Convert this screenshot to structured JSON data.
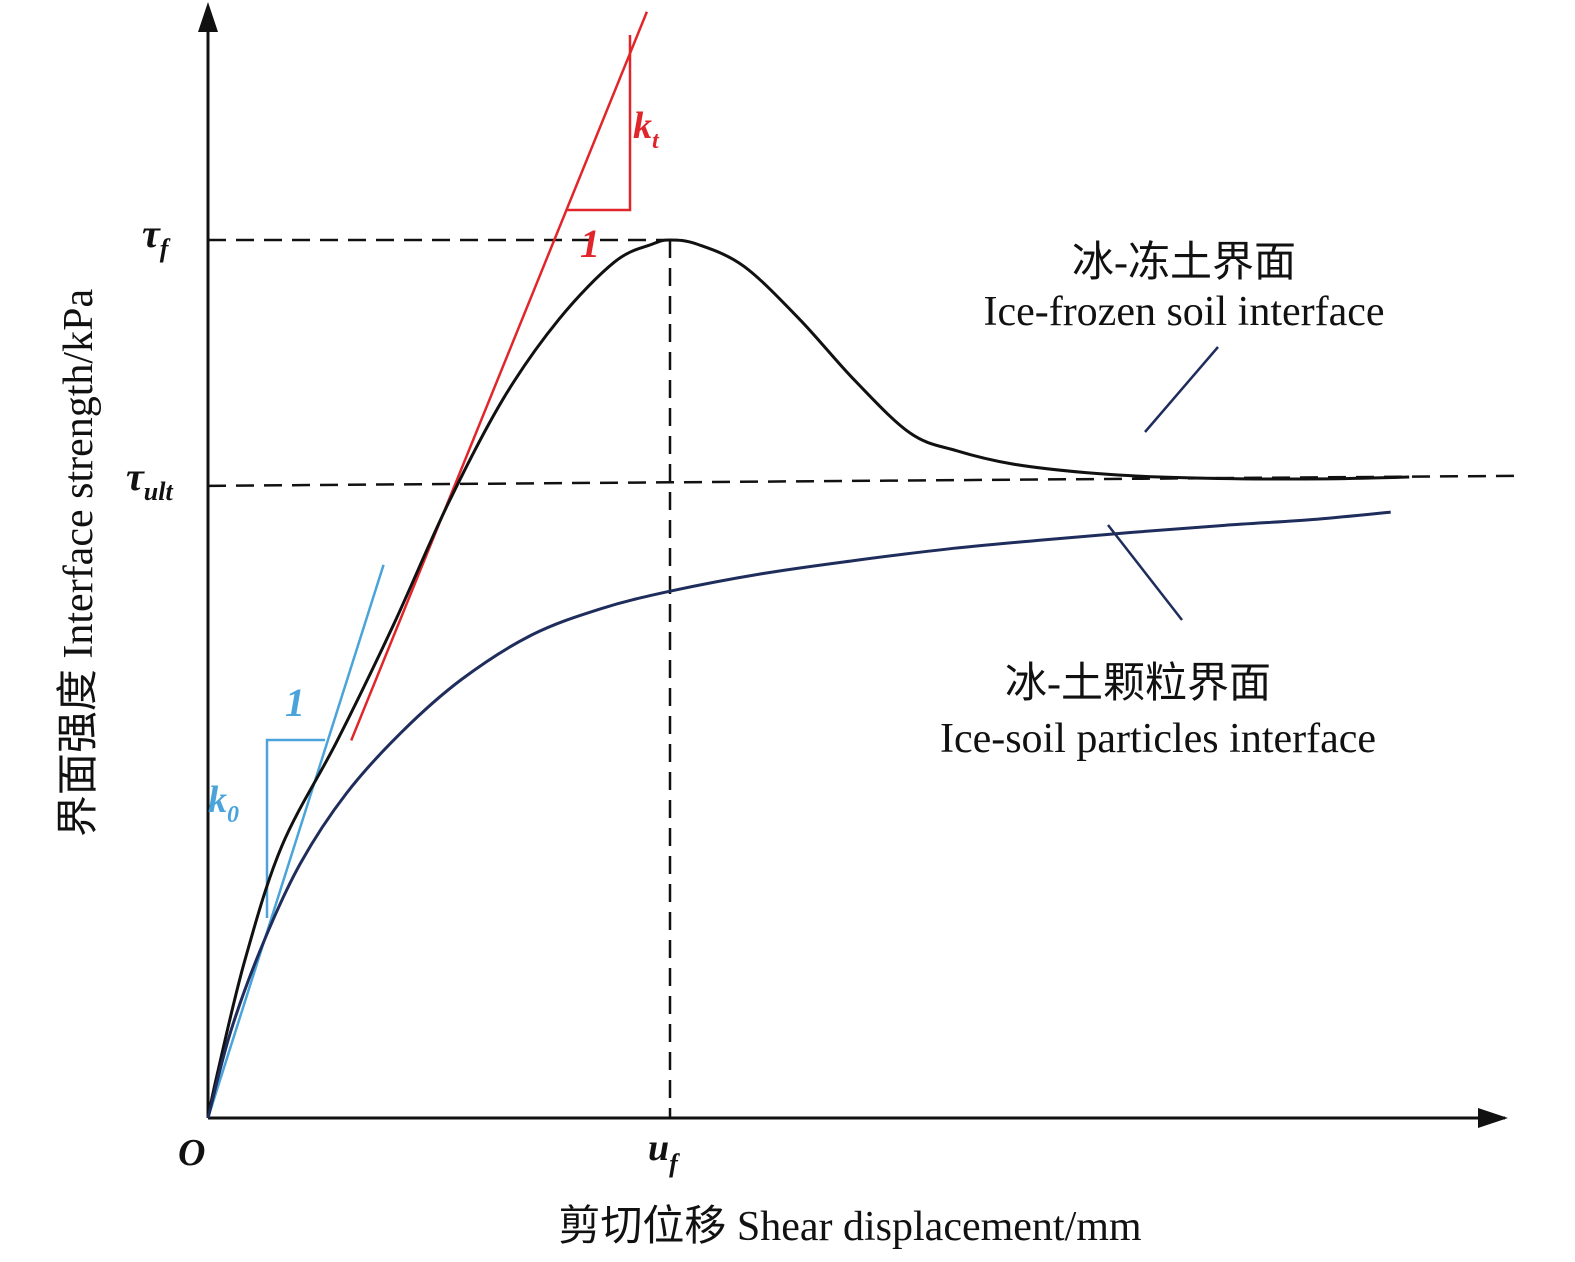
{
  "chart_data": {
    "type": "line",
    "title": "",
    "xlabel": "剪切位移 Shear displacement/mm",
    "ylabel": "界面强度 Interface strength/kPa",
    "origin_label": "O",
    "x_ticks": [
      {
        "main": "u",
        "sub": "f",
        "x": 1.0
      }
    ],
    "y_ticks": [
      {
        "main": "τ",
        "sub": "f",
        "y": 1.0
      },
      {
        "main": "τ",
        "sub": "ult",
        "y": 0.72
      }
    ],
    "xlim": [
      0,
      2.7
    ],
    "ylim": [
      0,
      1.26
    ],
    "series": [
      {
        "name": "冰-冻土界面 Ice-frozen soil interface",
        "color": "#111111",
        "x": [
          0,
          0.02,
          0.08,
          0.16,
          0.28,
          0.4,
          0.52,
          0.64,
          0.76,
          0.88,
          0.96,
          1.0,
          1.06,
          1.16,
          1.28,
          1.4,
          1.52,
          1.62,
          1.74,
          1.9,
          2.06,
          2.24,
          2.42,
          2.6
        ],
        "y": [
          0,
          0.05,
          0.18,
          0.31,
          0.43,
          0.56,
          0.7,
          0.82,
          0.91,
          0.975,
          0.995,
          1.0,
          0.995,
          0.97,
          0.91,
          0.84,
          0.78,
          0.76,
          0.745,
          0.735,
          0.73,
          0.728,
          0.728,
          0.73
        ]
      },
      {
        "name": "冰-土颗粒界面 Ice-soil particles interface",
        "color": "#1f2d5c",
        "x": [
          0,
          0.05,
          0.12,
          0.2,
          0.3,
          0.42,
          0.55,
          0.7,
          0.85,
          1.0,
          1.2,
          1.4,
          1.6,
          1.8,
          2.0,
          2.2,
          2.4,
          2.56
        ],
        "y": [
          0,
          0.1,
          0.2,
          0.29,
          0.37,
          0.44,
          0.5,
          0.55,
          0.58,
          0.6,
          0.62,
          0.635,
          0.648,
          0.658,
          0.667,
          0.675,
          0.682,
          0.69
        ]
      }
    ],
    "tangents": [
      {
        "name": "k0",
        "color": "#4aa3d9",
        "label": "k",
        "label_sub": "0",
        "slope_label": "1",
        "x": [
          0.0,
          0.38
        ],
        "y": [
          0.0,
          0.63
        ]
      },
      {
        "name": "kt",
        "color": "#e0262a",
        "label": "k",
        "label_sub": "t",
        "slope_label": "1",
        "x": [
          0.31,
          0.95
        ],
        "y": [
          0.43,
          1.26
        ]
      }
    ],
    "reference_lines": [
      {
        "name": "tau_f",
        "orientation": "horizontal",
        "y": 1.0
      },
      {
        "name": "tau_ult",
        "orientation": "horizontal",
        "y": 0.72
      },
      {
        "name": "u_f",
        "orientation": "vertical",
        "x": 1.0
      }
    ],
    "annotations": [
      {
        "target": "冰-冻土界面 Ice-frozen soil interface",
        "line1": "冰-冻土界面",
        "line2": "Ice-frozen soil interface"
      },
      {
        "target": "冰-土颗粒界面 Ice-soil particles interface",
        "line1": "冰-土颗粒界面",
        "line2": "Ice-soil particles interface"
      }
    ],
    "grid": false,
    "legend": "none"
  }
}
